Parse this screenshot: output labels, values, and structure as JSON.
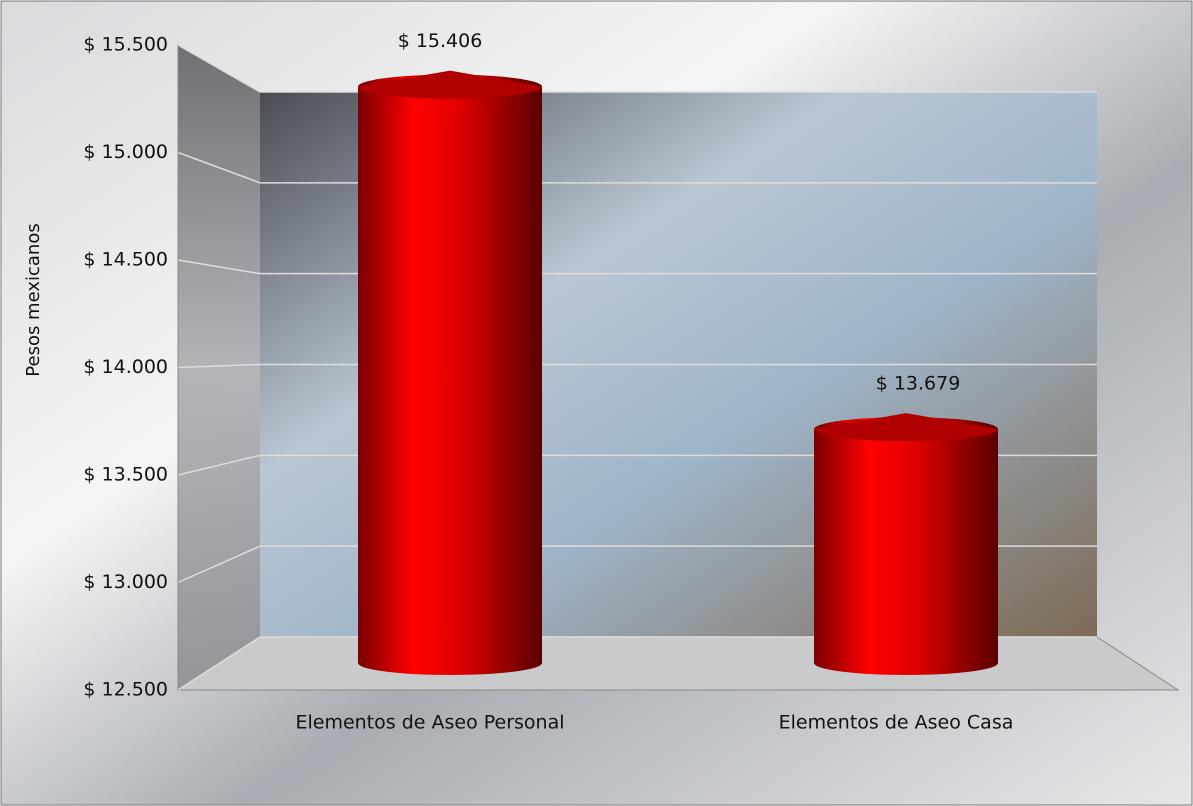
{
  "chart_data": {
    "type": "bar",
    "y_label": "Pesos mexicanos",
    "categories": [
      "Elementos de Aseo Personal",
      "Elementos de Aseo Casa"
    ],
    "values": [
      15406,
      13679
    ],
    "value_labels": [
      "$ 15.406",
      "$ 13.679"
    ],
    "color": "#e00000",
    "ylim": [
      12500,
      15500
    ],
    "yticks": [
      {
        "value": 12500,
        "label": "$ 12.500"
      },
      {
        "value": 13000,
        "label": "$ 13.000"
      },
      {
        "value": 13500,
        "label": "$ 13.500"
      },
      {
        "value": 14000,
        "label": "$ 14.000"
      },
      {
        "value": 14500,
        "label": "$ 14.500"
      },
      {
        "value": 15000,
        "label": "$ 15.000"
      },
      {
        "value": 15500,
        "label": "$ 15.500"
      }
    ],
    "grid": true
  }
}
